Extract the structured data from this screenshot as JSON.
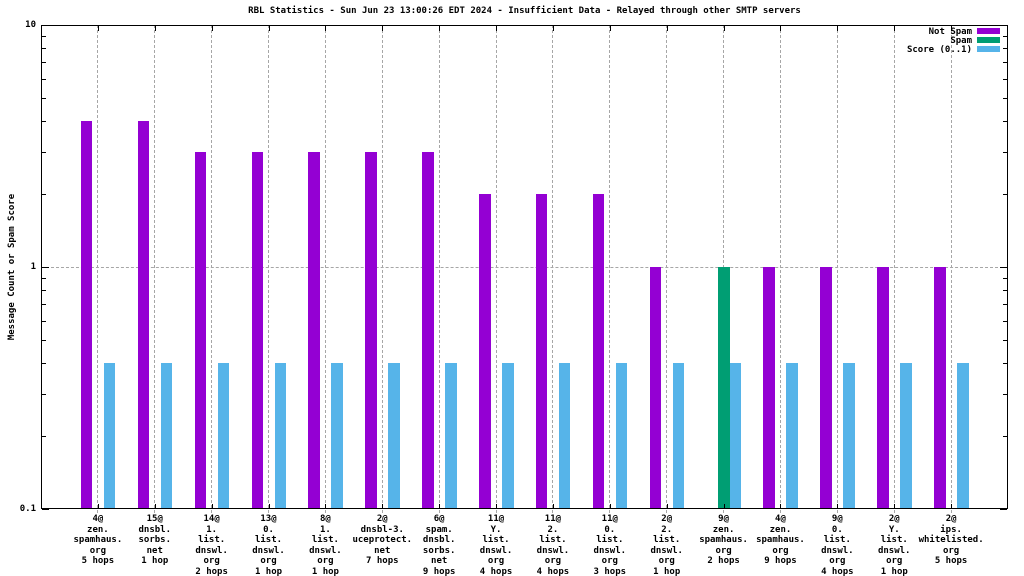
{
  "title": "RBL Statistics - Sun Jun 23 13:00:26 EDT 2024 - Insufficient Data - Relayed through other SMTP servers",
  "colors": {
    "not_spam": "#9400d3",
    "spam": "#009e73",
    "score": "#56b4e9",
    "grid": "#a6a6a6",
    "axis": "#000000",
    "background": "#ffffff"
  },
  "chart_data": {
    "type": "bar",
    "title": "RBL Statistics - Sun Jun 23 13:00:26 EDT 2024 - Insufficient Data - Relayed through other SMTP servers",
    "xlabel": "",
    "ylabel": "Message Count or Spam Score",
    "yscale": "log",
    "ylim": [
      0.1,
      10
    ],
    "ytick_labels": [
      "0.1",
      "1",
      "10"
    ],
    "ytick_values": [
      0.1,
      1,
      10
    ],
    "grid": true,
    "legend_position": "top-right-inside",
    "legend": [
      {
        "name": "Not Spam",
        "color": "#9400d3"
      },
      {
        "name": "Spam",
        "color": "#009e73"
      },
      {
        "name": "Score (0..1)",
        "color": "#56b4e9"
      }
    ],
    "categories": [
      {
        "label_lines": [
          "4@",
          "zen.",
          "spamhaus.",
          "org",
          "5 hops"
        ]
      },
      {
        "label_lines": [
          "15@",
          "dnsbl.",
          "sorbs.",
          "net",
          "1 hop"
        ]
      },
      {
        "label_lines": [
          "14@",
          "1.",
          "list.",
          "dnswl.",
          "org",
          "2 hops"
        ]
      },
      {
        "label_lines": [
          "13@",
          "0.",
          "list.",
          "dnswl.",
          "org",
          "1 hop"
        ]
      },
      {
        "label_lines": [
          "8@",
          "1.",
          "list.",
          "dnswl.",
          "org",
          "1 hop"
        ]
      },
      {
        "label_lines": [
          "2@",
          "dnsbl-3.",
          "uceprotect.",
          "net",
          "7 hops"
        ]
      },
      {
        "label_lines": [
          "6@",
          "spam.",
          "dnsbl.",
          "sorbs.",
          "net",
          "9 hops"
        ]
      },
      {
        "label_lines": [
          "11@",
          "Y.",
          "list.",
          "dnswl.",
          "org",
          "4 hops"
        ]
      },
      {
        "label_lines": [
          "11@",
          "2.",
          "list.",
          "dnswl.",
          "org",
          "4 hops"
        ]
      },
      {
        "label_lines": [
          "11@",
          "0.",
          "list.",
          "dnswl.",
          "org",
          "3 hops"
        ]
      },
      {
        "label_lines": [
          "2@",
          "2.",
          "list.",
          "dnswl.",
          "org",
          "1 hop"
        ]
      },
      {
        "label_lines": [
          "9@",
          "zen.",
          "spamhaus.",
          "org",
          "2 hops"
        ]
      },
      {
        "label_lines": [
          "4@",
          "zen.",
          "spamhaus.",
          "org",
          "9 hops"
        ]
      },
      {
        "label_lines": [
          "9@",
          "0.",
          "list.",
          "dnswl.",
          "org",
          "4 hops"
        ]
      },
      {
        "label_lines": [
          "2@",
          "Y.",
          "list.",
          "dnswl.",
          "org",
          "1 hop"
        ]
      },
      {
        "label_lines": [
          "2@",
          "ips.",
          "whitelisted.",
          "org",
          "5 hops"
        ]
      }
    ],
    "series": [
      {
        "name": "Not Spam",
        "color": "#9400d3",
        "values": [
          4,
          4,
          3,
          3,
          3,
          3,
          3,
          2,
          2,
          2,
          1,
          0,
          1,
          1,
          1,
          1
        ]
      },
      {
        "name": "Spam",
        "color": "#009e73",
        "values": [
          0,
          0,
          0,
          0,
          0,
          0,
          0,
          0,
          0,
          0,
          0,
          1,
          0,
          0,
          0,
          0
        ]
      },
      {
        "name": "Score (0..1)",
        "color": "#56b4e9",
        "values": [
          0.4,
          0.4,
          0.4,
          0.4,
          0.4,
          0.4,
          0.4,
          0.4,
          0.4,
          0.4,
          0.4,
          0.4,
          0.4,
          0.4,
          0.4,
          0.4
        ]
      }
    ]
  }
}
